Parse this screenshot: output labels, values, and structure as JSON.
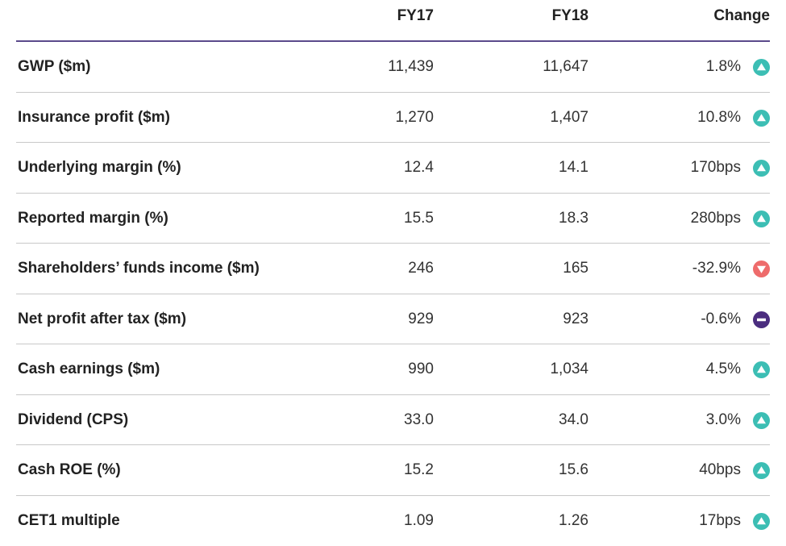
{
  "headers": {
    "fy17": "FY17",
    "fy18": "FY18",
    "change": "Change"
  },
  "colors": {
    "up": "#3cbeb4",
    "down": "#ee6b6b",
    "flat": "#4b2d7f",
    "header_rule": "#5b4a8b"
  },
  "rows": [
    {
      "label": "GWP ($m)",
      "fy17": "11,439",
      "fy18": "11,647",
      "change": "1.8%",
      "direction": "up",
      "icon": "triangle-up-icon"
    },
    {
      "label": "Insurance profit ($m)",
      "fy17": "1,270",
      "fy18": "1,407",
      "change": "10.8%",
      "direction": "up",
      "icon": "triangle-up-icon"
    },
    {
      "label": "Underlying margin (%)",
      "fy17": "12.4",
      "fy18": "14.1",
      "change": "170bps",
      "direction": "up",
      "icon": "triangle-up-icon"
    },
    {
      "label": "Reported margin (%)",
      "fy17": "15.5",
      "fy18": "18.3",
      "change": "280bps",
      "direction": "up",
      "icon": "triangle-up-icon"
    },
    {
      "label": "Shareholders’ funds income ($m)",
      "fy17": "246",
      "fy18": "165",
      "change": "-32.9%",
      "direction": "down",
      "icon": "triangle-down-icon"
    },
    {
      "label": "Net profit after tax ($m)",
      "fy17": "929",
      "fy18": "923",
      "change": "-0.6%",
      "direction": "flat",
      "icon": "minus-icon"
    },
    {
      "label": "Cash earnings ($m)",
      "fy17": "990",
      "fy18": "1,034",
      "change": "4.5%",
      "direction": "up",
      "icon": "triangle-up-icon"
    },
    {
      "label": "Dividend (CPS)",
      "fy17": "33.0",
      "fy18": "34.0",
      "change": "3.0%",
      "direction": "up",
      "icon": "triangle-up-icon"
    },
    {
      "label": "Cash ROE (%)",
      "fy17": "15.2",
      "fy18": "15.6",
      "change": "40bps",
      "direction": "up",
      "icon": "triangle-up-icon"
    },
    {
      "label": "CET1 multiple",
      "fy17": "1.09",
      "fy18": "1.26",
      "change": "17bps",
      "direction": "up",
      "icon": "triangle-up-icon"
    }
  ]
}
